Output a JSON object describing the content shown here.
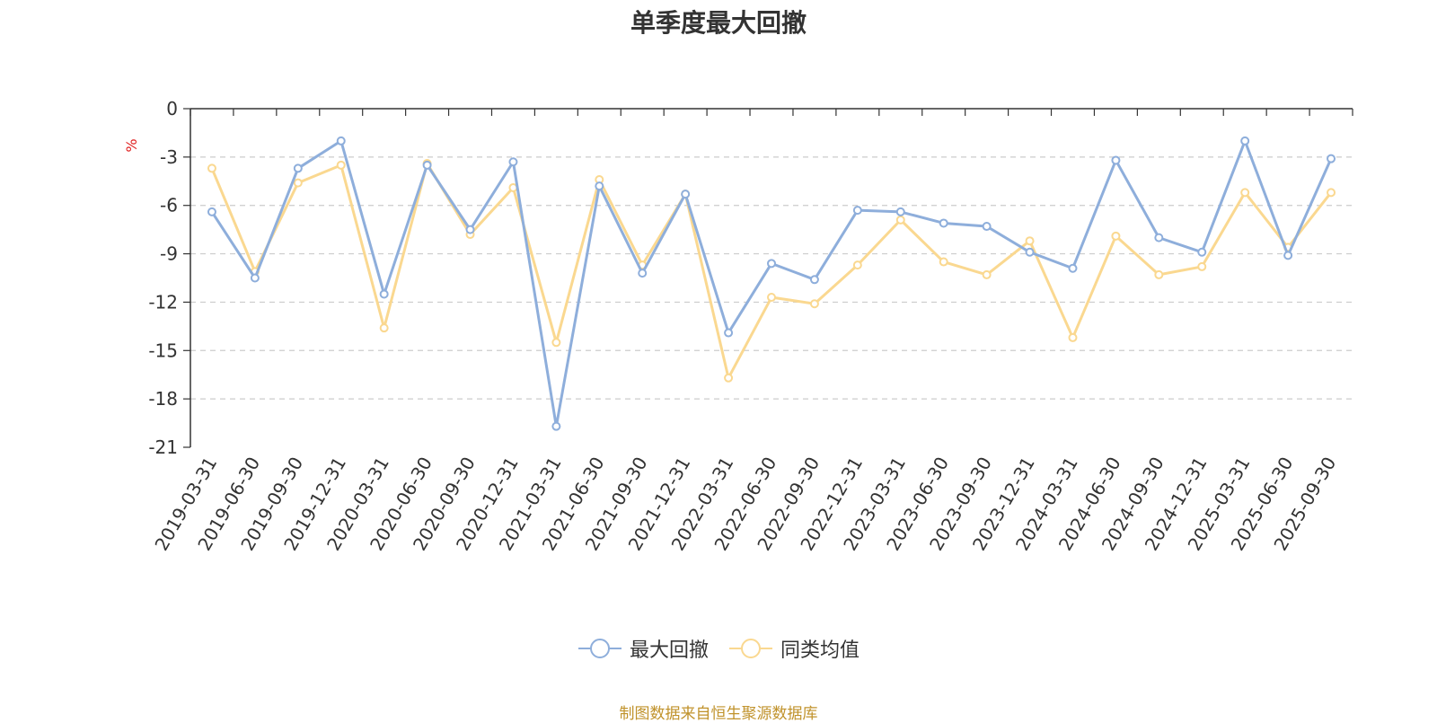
{
  "title": "单季度最大回撤",
  "source_note": "制图数据来自恒生聚源数据库",
  "chart_data": {
    "type": "line",
    "title": "单季度最大回撤",
    "ylabel": "%",
    "ylim": [
      -21,
      0
    ],
    "yticks": [
      0,
      -3,
      -6,
      -9,
      -12,
      -15,
      -18,
      -21
    ],
    "grid": true,
    "legend_position": "bottom-center",
    "categories": [
      "2019-03-31",
      "2019-06-30",
      "2019-09-30",
      "2019-12-31",
      "2020-03-31",
      "2020-06-30",
      "2020-09-30",
      "2020-12-31",
      "2021-03-31",
      "2021-06-30",
      "2021-09-30",
      "2021-12-31",
      "2022-03-31",
      "2022-06-30",
      "2022-09-30",
      "2022-12-31",
      "2023-03-31",
      "2023-06-30",
      "2023-09-30",
      "2023-12-31",
      "2024-03-31",
      "2024-06-30",
      "2024-09-30",
      "2024-12-31",
      "2025-03-31",
      "2025-06-30",
      "2025-09-30"
    ],
    "series": [
      {
        "name": "最大回撤",
        "color": "#8eaedb",
        "values": [
          -6.4,
          -10.5,
          -3.7,
          -2.0,
          -11.5,
          -3.5,
          -7.5,
          -3.3,
          -19.7,
          -4.8,
          -10.2,
          -5.3,
          -13.9,
          -9.6,
          -10.6,
          -6.3,
          -6.4,
          -7.1,
          -7.3,
          -8.9,
          -9.9,
          -3.2,
          -8.0,
          -8.9,
          -2.0,
          -9.1,
          -3.1
        ]
      },
      {
        "name": "同类均值",
        "color": "#fad890",
        "values": [
          -3.7,
          -10.1,
          -4.6,
          -3.5,
          -13.6,
          -3.4,
          -7.8,
          -4.9,
          -14.5,
          -4.4,
          -9.7,
          -5.3,
          -16.7,
          -11.7,
          -12.1,
          -9.7,
          -6.9,
          -9.5,
          -10.3,
          -8.2,
          -14.2,
          -7.9,
          -10.3,
          -9.8,
          -5.2,
          -8.6,
          -5.2
        ]
      }
    ]
  }
}
